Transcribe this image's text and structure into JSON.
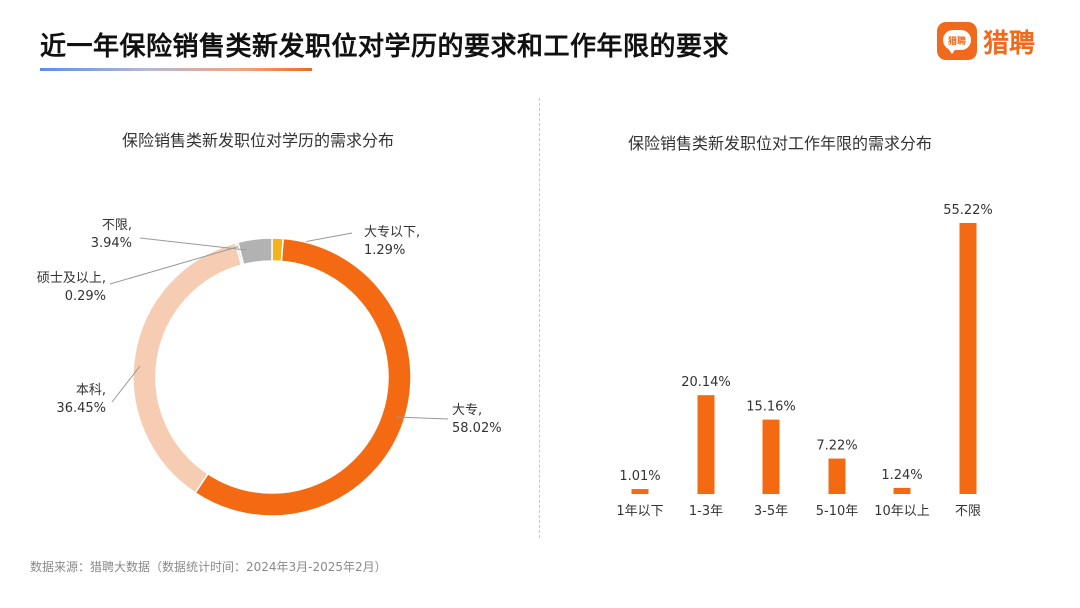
{
  "header": {
    "title": "近一年保险销售类新发职位对学历的要求和工作年限的要求",
    "brand_name": "猎聘",
    "brand_icon_text": "猎聘"
  },
  "colors": {
    "accent": "#f06a1d",
    "bar": "#f46a12"
  },
  "footer": {
    "source": "数据来源：猎聘大数据（数据统计时间：2024年3月-2025年2月）"
  },
  "chart_data": [
    {
      "type": "pie",
      "title": "保险销售类新发职位对学历的需求分布",
      "slices": [
        {
          "label": "大专以下,",
          "pct": "1.29%",
          "value": 1.29,
          "color": "#f2b31a"
        },
        {
          "label": "大专,",
          "pct": "58.02%",
          "value": 58.02,
          "color": "#f46a12"
        },
        {
          "label": "本科,",
          "pct": "36.45%",
          "value": 36.45,
          "color": "#f6cdb3"
        },
        {
          "label": "硕士及以上,",
          "pct": "0.29%",
          "value": 0.29,
          "color": "#e0e0e0"
        },
        {
          "label": "不限,",
          "pct": "3.94%",
          "value": 3.94,
          "color": "#b2b2b2"
        }
      ]
    },
    {
      "type": "bar",
      "title": "保险销售类新发职位对工作年限的需求分布",
      "categories": [
        "1年以下",
        "1-3年",
        "3-5年",
        "5-10年",
        "10年以上",
        "不限"
      ],
      "values": [
        1.01,
        20.14,
        15.16,
        7.22,
        1.24,
        55.22
      ],
      "value_labels": [
        "1.01%",
        "20.14%",
        "15.16%",
        "7.22%",
        "1.24%",
        "55.22%"
      ]
    }
  ]
}
